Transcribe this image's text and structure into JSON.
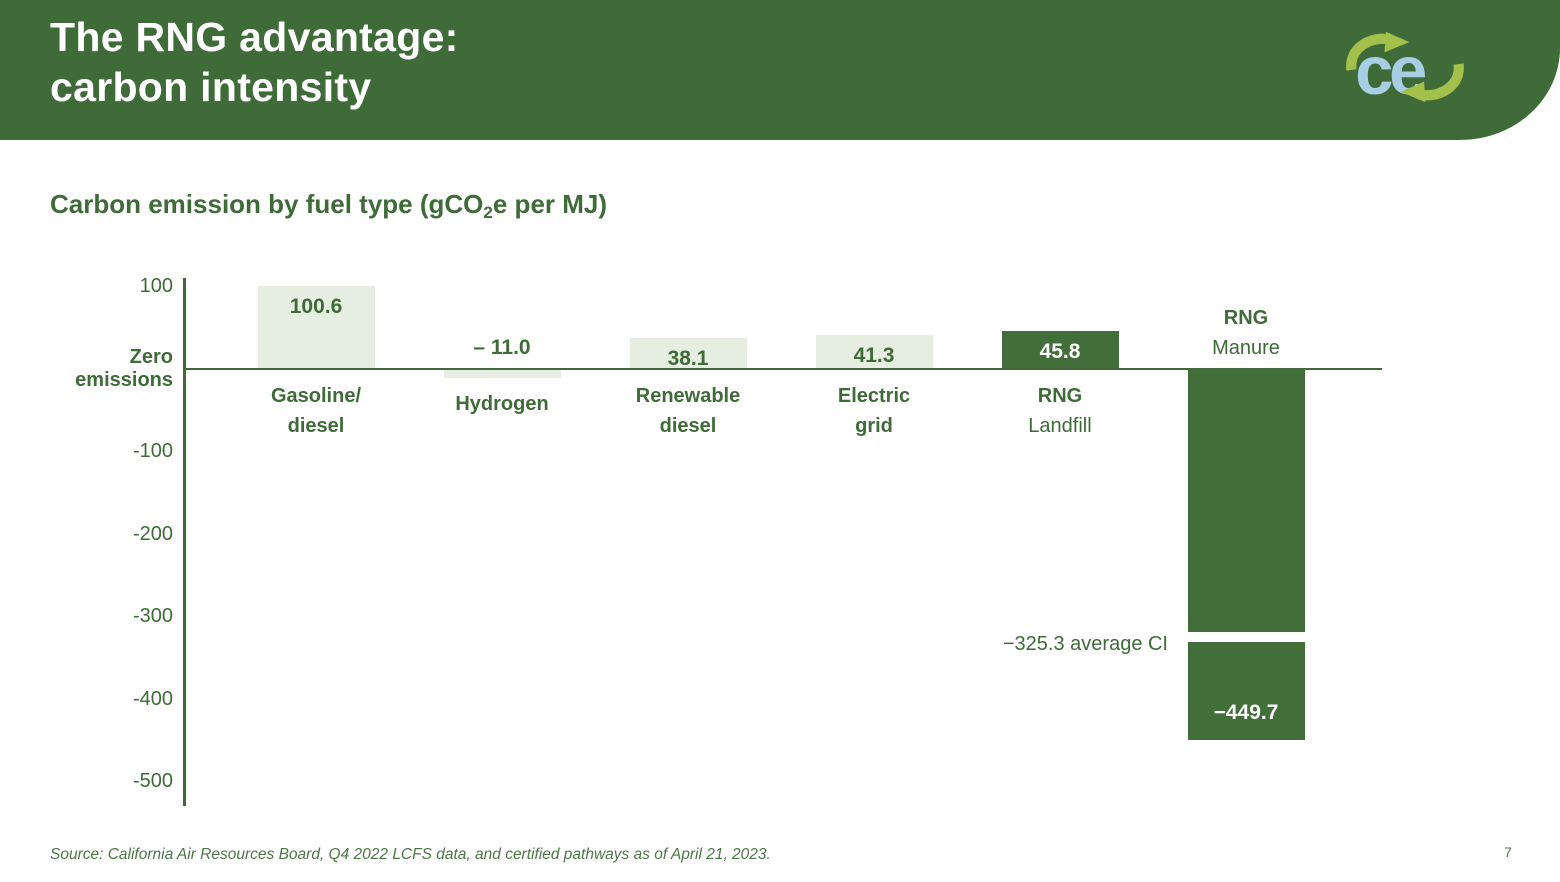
{
  "slide": {
    "title_line1": "The RNG advantage:",
    "title_line2": "carbon intensity",
    "logo_text": "ce",
    "page_number": "7",
    "source": "Source: California Air Resources Board, Q4 2022 LCFS data, and certified pathways as of April 21, 2023."
  },
  "colors": {
    "header_green": "#3e6b38",
    "dark_bar_green": "#426e3a",
    "light_bar_green": "#e5eee1",
    "text_green": "#3e6b38",
    "source_green": "#4e7549",
    "logo_blue": "#a7cee3",
    "logo_lime": "#a3c04a",
    "white": "#ffffff"
  },
  "chart_data": {
    "type": "bar",
    "title": "Carbon emission by fuel type (gCO2e per MJ)",
    "title_parts": {
      "prefix": "Carbon emission by fuel type (gCO",
      "sub": "2",
      "suffix": "e per MJ)"
    },
    "xlabel": "",
    "ylabel": "",
    "ylim": [
      -500,
      100
    ],
    "grid": false,
    "legend": false,
    "categories": [
      "Gasoline/diesel",
      "Hydrogen",
      "Renewable diesel",
      "Electric grid",
      "RNG Landfill",
      "RNG Manure"
    ],
    "values": [
      100.6,
      -11.0,
      38.1,
      41.3,
      45.8,
      -449.7
    ],
    "yticks": [
      {
        "value": 100,
        "lines": [
          "100"
        ],
        "bold": false
      },
      {
        "value": 0,
        "lines": [
          "Zero",
          "emissions"
        ],
        "bold": true
      },
      {
        "value": -100,
        "lines": [
          "-100"
        ],
        "bold": false
      },
      {
        "value": -200,
        "lines": [
          "-200"
        ],
        "bold": false
      },
      {
        "value": -300,
        "lines": [
          "-300"
        ],
        "bold": false
      },
      {
        "value": -400,
        "lines": [
          "-400"
        ],
        "bold": false
      },
      {
        "value": -500,
        "lines": [
          "-500"
        ],
        "bold": false
      }
    ],
    "bars": [
      {
        "id": "gasoline-diesel",
        "value": 100.6,
        "display": "100.6",
        "style": "light",
        "value_label_pos": "inside-top",
        "label_side": "below",
        "label_lines": [
          {
            "text": "Gasoline/",
            "bold": true
          },
          {
            "text": "diesel",
            "bold": true
          }
        ]
      },
      {
        "id": "hydrogen",
        "value": -11.0,
        "display": "– 11.0",
        "style": "light",
        "value_label_pos": "above-zero",
        "label_side": "below",
        "label_lines": [
          {
            "text": "Hydrogen",
            "bold": true
          }
        ]
      },
      {
        "id": "renewable-diesel",
        "value": 38.1,
        "display": "38.1",
        "style": "light",
        "value_label_pos": "inside-top",
        "label_side": "below",
        "label_lines": [
          {
            "text": "Renewable",
            "bold": true
          },
          {
            "text": "diesel",
            "bold": true
          }
        ]
      },
      {
        "id": "electric-grid",
        "value": 41.3,
        "display": "41.3",
        "style": "light",
        "value_label_pos": "inside-top",
        "label_side": "below",
        "label_lines": [
          {
            "text": "Electric",
            "bold": true
          },
          {
            "text": "grid",
            "bold": true
          }
        ]
      },
      {
        "id": "rng-landfill",
        "value": 45.8,
        "display": "45.8",
        "style": "dark",
        "value_label_pos": "inside-top",
        "label_side": "below",
        "label_lines": [
          {
            "text": "RNG",
            "bold": true
          },
          {
            "text": "Landfill",
            "bold": false
          }
        ]
      },
      {
        "id": "rng-manure",
        "value": -449.7,
        "display": "−449.7",
        "style": "dark",
        "value_label_pos": "inside-bottom",
        "label_side": "above",
        "label_lines": [
          {
            "text": "RNG",
            "bold": true
          },
          {
            "text": "Manure",
            "bold": false
          }
        ],
        "gap_value": -325.3
      }
    ],
    "annotation": {
      "text": "−325.3 average CI",
      "value": -325.3
    }
  }
}
